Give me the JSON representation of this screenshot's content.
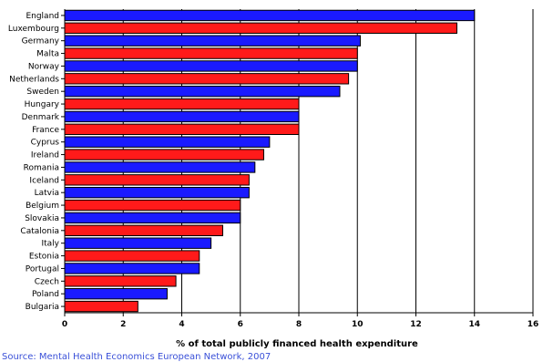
{
  "chart_data": {
    "type": "bar",
    "orientation": "horizontal",
    "categories": [
      "England",
      "Luxembourg",
      "Germany",
      "Malta",
      "Norway",
      "Netherlands",
      "Sweden",
      "Hungary",
      "Denmark",
      "France",
      "Cyprus",
      "Ireland",
      "Romania",
      "Iceland",
      "Latvia",
      "Belgium",
      "Slovakia",
      "Catalonia",
      "Italy",
      "Estonia",
      "Portugal",
      "Czech",
      "Poland",
      "Bulgaria"
    ],
    "values": [
      14.0,
      13.4,
      10.1,
      10.0,
      10.0,
      9.7,
      9.4,
      8.0,
      8.0,
      8.0,
      7.0,
      6.8,
      6.5,
      6.3,
      6.3,
      6.0,
      6.0,
      5.4,
      5.0,
      4.6,
      4.6,
      3.8,
      3.5,
      2.5
    ],
    "bar_colors": [
      "blue",
      "red",
      "blue",
      "red",
      "blue",
      "red",
      "blue",
      "red",
      "blue",
      "red",
      "blue",
      "red",
      "blue",
      "red",
      "blue",
      "red",
      "blue",
      "red",
      "blue",
      "red",
      "blue",
      "red",
      "blue",
      "red"
    ],
    "xlabel": "% of total publicly financed health expenditure",
    "xlim": [
      0,
      16
    ],
    "xticks": [
      0,
      2,
      4,
      6,
      8,
      10,
      12,
      14,
      16
    ],
    "grid": "vertical major gridlines",
    "legend": "none"
  },
  "colors": {
    "blue": "#1a1aff",
    "red": "#ff1a1a",
    "gridline": "#000000",
    "source_text": "#3a50d8"
  },
  "source_note": "Source: Mental Health Economics European Network, 2007"
}
